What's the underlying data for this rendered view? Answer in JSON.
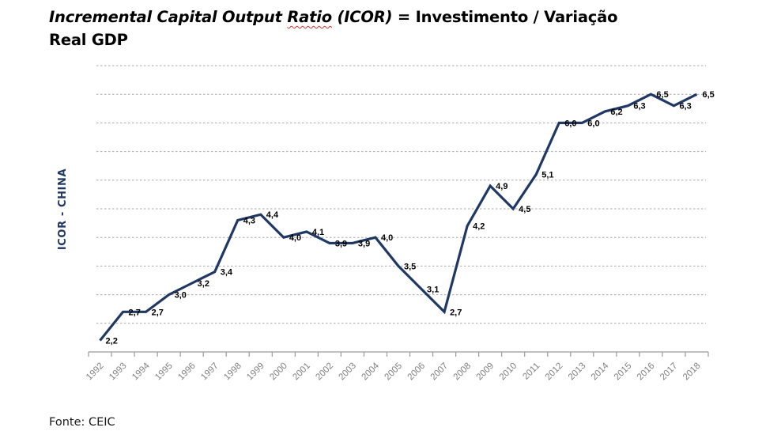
{
  "title": {
    "italic_prefix": "Incremental Capital Output ",
    "squiggle_word": "Ratio",
    "italic_suffix": " (ICOR)",
    "normal_suffix": " = Investimento / Variação",
    "line2": "Real GDP"
  },
  "y_axis_title": "ICOR - CHINA",
  "footer": {
    "source": "Fonte: CEIC"
  },
  "colors": {
    "line": "#1f3864",
    "y_axis_title": "#1f3864",
    "data_label": "#000000",
    "grid": "#a9a9a9",
    "axis": "#9b9b9b",
    "x_tick_label": "#7f7f7f",
    "title_text": "#000000",
    "squiggle": "#e03030",
    "background": "#ffffff"
  },
  "chart_data": {
    "type": "line",
    "title": "Incremental Capital Output Ratio (ICOR) = Investimento / Variação Real GDP",
    "ylabel": "ICOR - CHINA",
    "xlabel": "",
    "categories": [
      "1992",
      "1993",
      "1994",
      "1995",
      "1996",
      "1997",
      "1998",
      "1999",
      "2000",
      "2001",
      "2002",
      "2003",
      "2004",
      "2005",
      "2006",
      "2007",
      "2008",
      "2009",
      "2010",
      "2011",
      "2012",
      "2013",
      "2014",
      "2015",
      "2016",
      "2017",
      "2018"
    ],
    "values": [
      2.2,
      2.7,
      2.7,
      3.0,
      3.2,
      3.4,
      4.3,
      4.4,
      4.0,
      4.1,
      3.9,
      3.9,
      4.0,
      3.5,
      3.1,
      2.7,
      4.2,
      4.9,
      4.5,
      5.1,
      6.0,
      6.0,
      6.2,
      6.3,
      6.5,
      6.3,
      6.5
    ],
    "labels_display": [
      "2,2",
      "2,7",
      "2,7",
      "3,0",
      "3,2",
      "3,4",
      "4,3",
      "4,4",
      "4,0",
      "4,1",
      "3,9",
      "3,9",
      "4,0",
      "3,5",
      "3,1",
      "2,7",
      "4,2",
      "4,9",
      "4,5",
      "5,1",
      "6,0",
      "6,0",
      "6,2",
      "6,3",
      "6,5",
      "6,3",
      "6,5"
    ],
    "decimal_separator": ",",
    "ylim": [
      2.0,
      7.0
    ],
    "grid_step": 0.5,
    "gridlines": "horizontal-dashed",
    "legend": "none",
    "markers": "none",
    "line_width": 3.2,
    "source": "Fonte: CEIC"
  }
}
